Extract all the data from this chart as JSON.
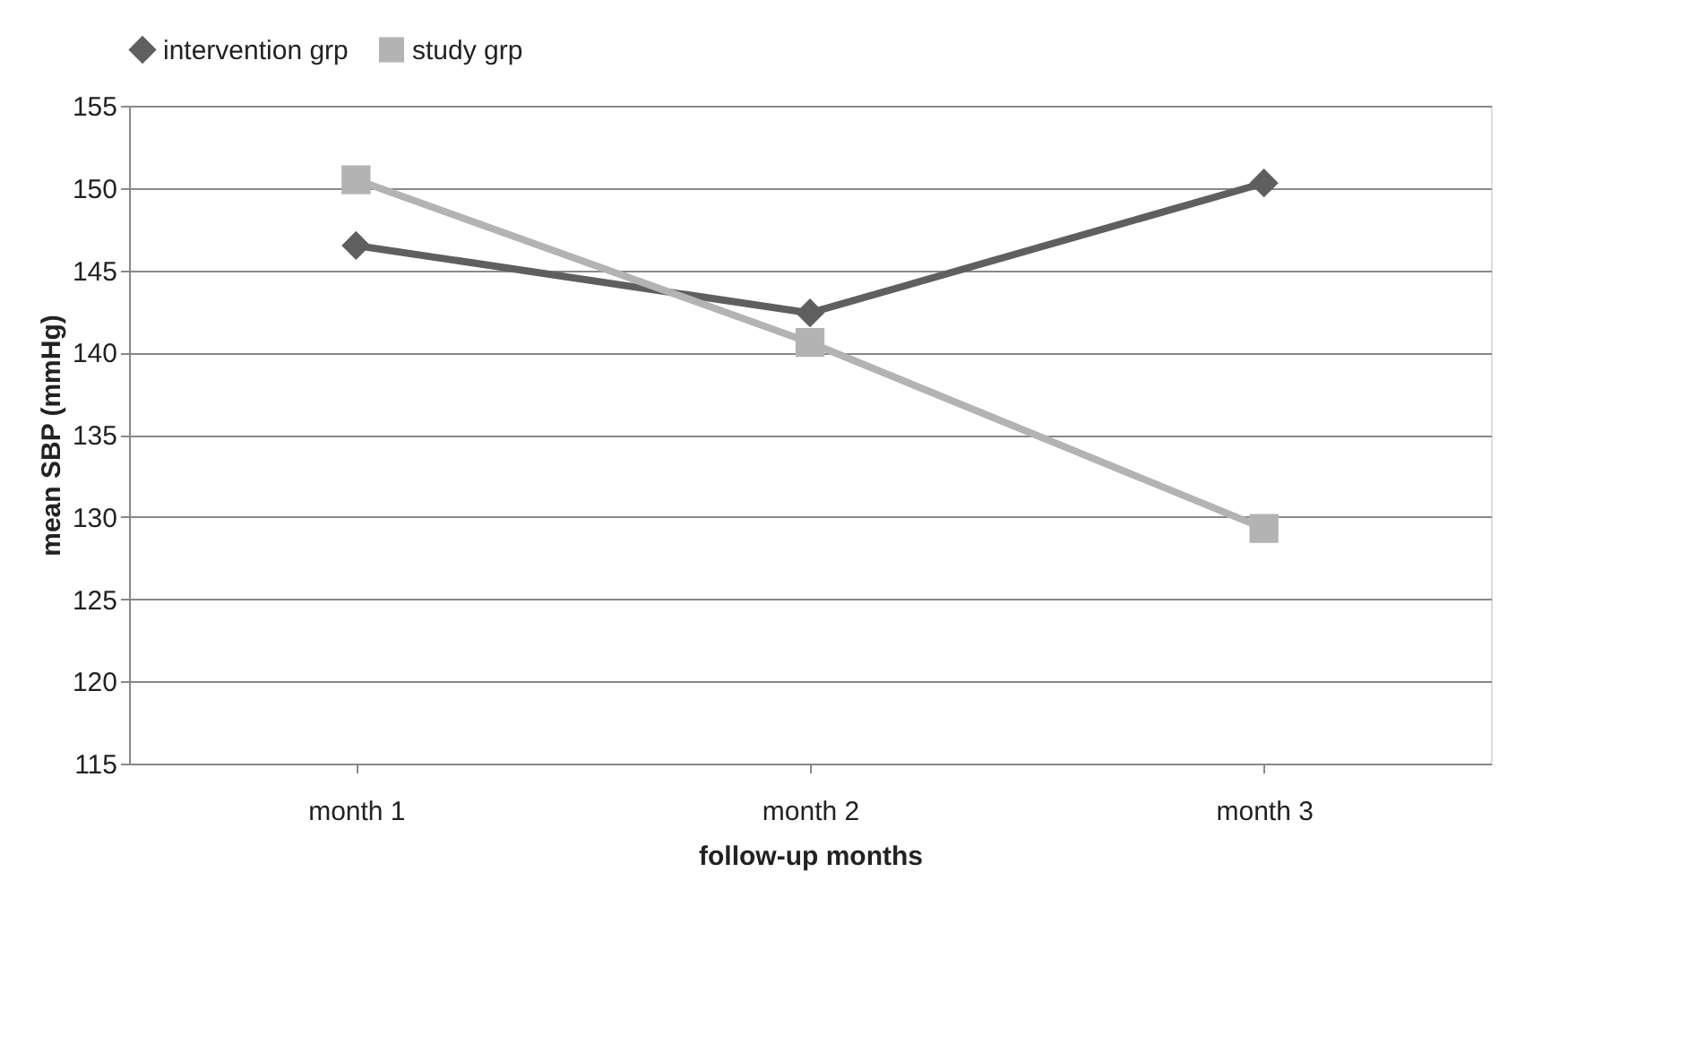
{
  "chart_data": {
    "type": "line",
    "xlabel": "follow-up months",
    "ylabel": "mean SBP (mmHg)",
    "categories": [
      "month 1",
      "month 2",
      "month 3"
    ],
    "series": [
      {
        "name": "intervention grp",
        "color": "#5f5f5f",
        "marker": "diamond",
        "values": [
          146.5,
          142.4,
          150.3
        ]
      },
      {
        "name": "study grp",
        "color": "#b3b3b3",
        "marker": "square",
        "values": [
          150.5,
          140.6,
          129.3
        ]
      }
    ],
    "ylim": [
      115,
      155
    ],
    "yticks": [
      115,
      120,
      125,
      130,
      135,
      140,
      145,
      150,
      155
    ],
    "grid": "y",
    "legend": "top",
    "line_style": "solid"
  }
}
